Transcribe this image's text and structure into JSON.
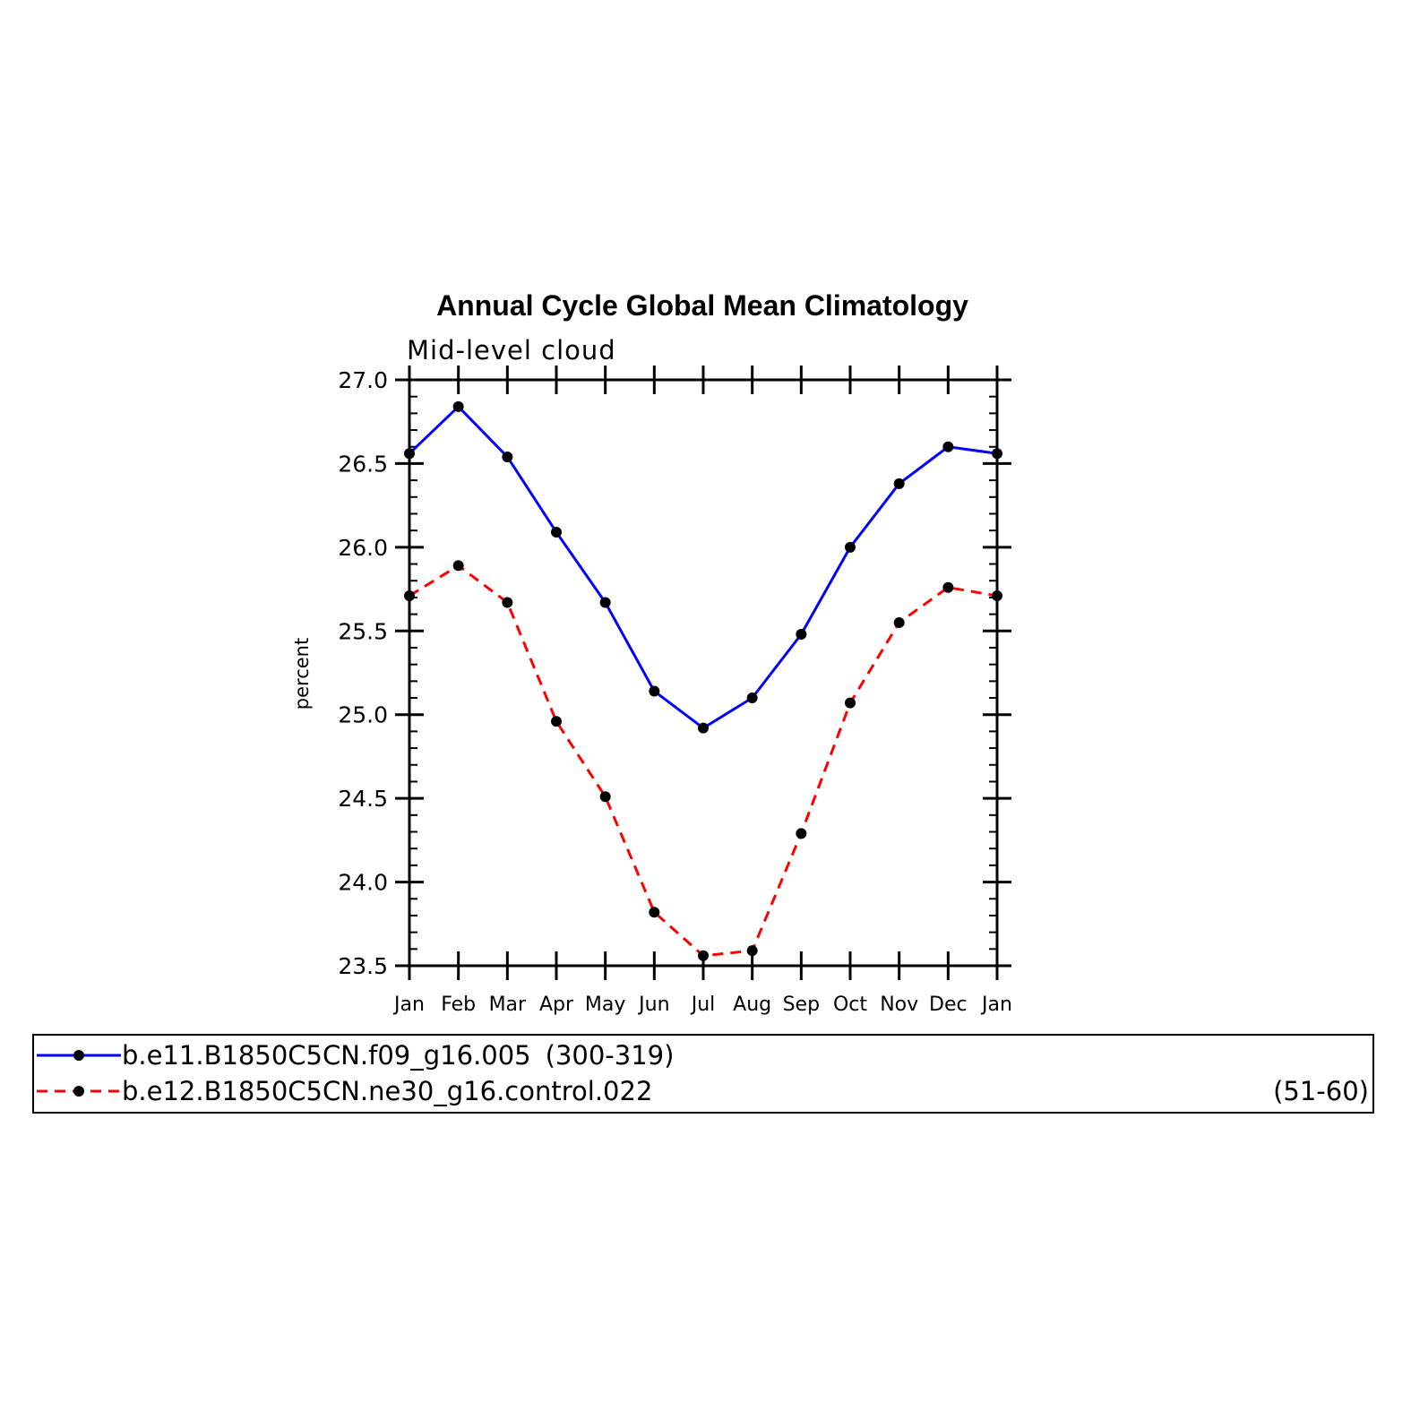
{
  "chart_data": {
    "type": "line",
    "title": "Annual Cycle Global Mean Climatology",
    "subtitle": "Mid-level cloud",
    "xlabel": "",
    "ylabel": "percent",
    "categories": [
      "Jan",
      "Feb",
      "Mar",
      "Apr",
      "May",
      "Jun",
      "Jul",
      "Aug",
      "Sep",
      "Oct",
      "Nov",
      "Dec",
      "Jan"
    ],
    "ylim": [
      23.5,
      27.0
    ],
    "yticks": [
      "23.5",
      "24.0",
      "24.5",
      "25.0",
      "25.5",
      "26.0",
      "26.5",
      "27.0"
    ],
    "grid": false,
    "legend_position": "bottom",
    "series": [
      {
        "name": "b.e11.B1850C5CN.f09_g16.005",
        "period": "(300-319)",
        "color": "#0000ff",
        "dash": "solid",
        "values": [
          26.56,
          26.84,
          26.54,
          26.09,
          25.67,
          25.14,
          24.92,
          25.1,
          25.48,
          26.0,
          26.38,
          26.6,
          26.56
        ]
      },
      {
        "name": "b.e12.B1850C5CN.ne30_g16.control.022",
        "period": "(51-60)",
        "color": "#ff0000",
        "dash": "dashed",
        "values": [
          25.71,
          25.89,
          25.67,
          24.96,
          24.51,
          23.82,
          23.56,
          23.59,
          24.29,
          25.07,
          25.55,
          25.76,
          25.71
        ]
      }
    ],
    "marker_color": "#000000"
  }
}
